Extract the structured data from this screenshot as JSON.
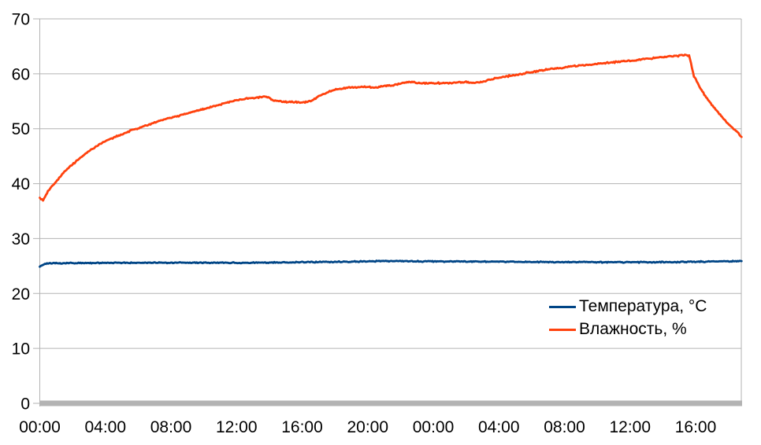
{
  "chart_data": {
    "type": "line",
    "title": "",
    "grid": "horizontal",
    "legend_position": "middle-right",
    "colors": {
      "background": "#ffffff",
      "grid": "#b3b3b3",
      "axis": "#b3b3b3",
      "text": "#000000"
    },
    "x_axis": {
      "label": "",
      "unit": "time (hh:mm)",
      "tick_hours": [
        0,
        4,
        8,
        12,
        16,
        20,
        24,
        28,
        32,
        36,
        40
      ],
      "tick_labels": [
        "00:00",
        "04:00",
        "08:00",
        "12:00",
        "16:00",
        "20:00",
        "00:00",
        "04:00",
        "08:00",
        "12:00",
        "16:00"
      ],
      "range_hours": [
        0,
        42.8
      ]
    },
    "y_axis": {
      "label": "",
      "min": 0,
      "max": 70,
      "step": 10,
      "tick_labels": [
        "0",
        "10",
        "20",
        "30",
        "40",
        "50",
        "60",
        "70"
      ]
    },
    "series": [
      {
        "name": "Температура, °C",
        "color": "#004586",
        "points": [
          [
            0,
            24.85
          ],
          [
            0.1,
            25.05
          ],
          [
            0.25,
            25.35
          ],
          [
            0.5,
            25.5
          ],
          [
            1,
            25.5
          ],
          [
            2,
            25.55
          ],
          [
            4,
            25.55
          ],
          [
            6,
            25.6
          ],
          [
            8,
            25.6
          ],
          [
            10,
            25.6
          ],
          [
            12,
            25.6
          ],
          [
            14,
            25.65
          ],
          [
            16,
            25.7
          ],
          [
            18,
            25.75
          ],
          [
            20,
            25.85
          ],
          [
            21,
            25.9
          ],
          [
            22,
            25.9
          ],
          [
            23,
            25.85
          ],
          [
            24,
            25.85
          ],
          [
            26,
            25.8
          ],
          [
            28,
            25.8
          ],
          [
            30,
            25.75
          ],
          [
            32,
            25.7
          ],
          [
            34,
            25.7
          ],
          [
            36,
            25.7
          ],
          [
            38,
            25.7
          ],
          [
            39.5,
            25.75
          ],
          [
            40.5,
            25.8
          ],
          [
            41.5,
            25.85
          ],
          [
            42.8,
            25.9
          ]
        ]
      },
      {
        "name": "Влажность, %",
        "color": "#FF420E",
        "points": [
          [
            0,
            37.4
          ],
          [
            0.2,
            36.9
          ],
          [
            0.5,
            38.6
          ],
          [
            1,
            40.4
          ],
          [
            1.5,
            42.1
          ],
          [
            2,
            43.5
          ],
          [
            2.5,
            44.8
          ],
          [
            3,
            45.9
          ],
          [
            3.5,
            46.9
          ],
          [
            4,
            47.7
          ],
          [
            4.5,
            48.4
          ],
          [
            5,
            49.0
          ],
          [
            5.5,
            49.6
          ],
          [
            6,
            50.1
          ],
          [
            6.5,
            50.6
          ],
          [
            7,
            51.1
          ],
          [
            7.5,
            51.6
          ],
          [
            8,
            52.0
          ],
          [
            9,
            52.8
          ],
          [
            10,
            53.6
          ],
          [
            11,
            54.4
          ],
          [
            12,
            55.2
          ],
          [
            12.5,
            55.45
          ],
          [
            13,
            55.55
          ],
          [
            13.4,
            55.7
          ],
          [
            13.7,
            55.9
          ],
          [
            14,
            55.6
          ],
          [
            14.3,
            55.1
          ],
          [
            15,
            54.9
          ],
          [
            15.5,
            54.85
          ],
          [
            16,
            54.8
          ],
          [
            16.4,
            54.9
          ],
          [
            16.7,
            55.3
          ],
          [
            17,
            55.9
          ],
          [
            17.5,
            56.6
          ],
          [
            18,
            57.1
          ],
          [
            18.5,
            57.4
          ],
          [
            19,
            57.5
          ],
          [
            19.5,
            57.55
          ],
          [
            20,
            57.6
          ],
          [
            20.5,
            57.5
          ],
          [
            21,
            57.75
          ],
          [
            21.5,
            57.9
          ],
          [
            22,
            58.2
          ],
          [
            22.4,
            58.5
          ],
          [
            22.7,
            58.55
          ],
          [
            23,
            58.25
          ],
          [
            23.5,
            58.3
          ],
          [
            24,
            58.3
          ],
          [
            24.5,
            58.3
          ],
          [
            25,
            58.3
          ],
          [
            25.5,
            58.4
          ],
          [
            26,
            58.5
          ],
          [
            26.3,
            58.35
          ],
          [
            26.6,
            58.35
          ],
          [
            27,
            58.6
          ],
          [
            27.5,
            58.95
          ],
          [
            28,
            59.3
          ],
          [
            28.5,
            59.55
          ],
          [
            29,
            59.8
          ],
          [
            29.5,
            60.05
          ],
          [
            30,
            60.3
          ],
          [
            30.5,
            60.55
          ],
          [
            31,
            60.8
          ],
          [
            31.5,
            61.0
          ],
          [
            32,
            61.2
          ],
          [
            32.5,
            61.35
          ],
          [
            33,
            61.5
          ],
          [
            33.5,
            61.65
          ],
          [
            34,
            61.8
          ],
          [
            34.5,
            61.95
          ],
          [
            35,
            62.1
          ],
          [
            35.5,
            62.25
          ],
          [
            36,
            62.4
          ],
          [
            36.5,
            62.55
          ],
          [
            37,
            62.7
          ],
          [
            37.5,
            62.9
          ],
          [
            38,
            63.05
          ],
          [
            38.5,
            63.2
          ],
          [
            39,
            63.3
          ],
          [
            39.4,
            63.45
          ],
          [
            39.6,
            63.3
          ],
          [
            39.9,
            59.6
          ],
          [
            40.3,
            57.3
          ],
          [
            40.7,
            55.5
          ],
          [
            41.1,
            53.9
          ],
          [
            41.5,
            52.5
          ],
          [
            41.9,
            51.2
          ],
          [
            42.2,
            50.3
          ],
          [
            42.5,
            49.5
          ],
          [
            42.8,
            48.5
          ]
        ]
      }
    ]
  }
}
